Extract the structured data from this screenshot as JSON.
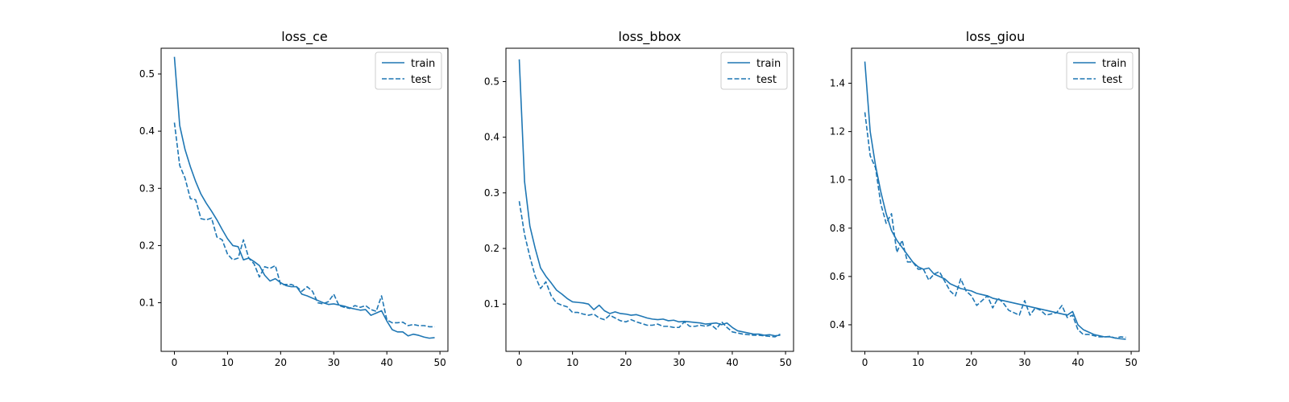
{
  "chart_data": [
    {
      "type": "line",
      "title": "loss_ce",
      "xlabel": "",
      "ylabel": "",
      "xlim": [
        -2.5,
        51.5
      ],
      "ylim": [
        0.015,
        0.545
      ],
      "xticks": [
        0,
        10,
        20,
        30,
        40,
        50
      ],
      "yticks": [
        0.1,
        0.2,
        0.3,
        0.4,
        0.5
      ],
      "ytick_labels": [
        "0.1",
        "0.2",
        "0.3",
        "0.4",
        "0.5"
      ],
      "legend_position": "upper right",
      "series": [
        {
          "name": "train",
          "style": "solid",
          "color": "#1f77b4",
          "values": [
            0.53,
            0.41,
            0.368,
            0.338,
            0.312,
            0.29,
            0.274,
            0.26,
            0.245,
            0.228,
            0.212,
            0.2,
            0.198,
            0.175,
            0.178,
            0.172,
            0.165,
            0.148,
            0.138,
            0.142,
            0.135,
            0.13,
            0.128,
            0.128,
            0.115,
            0.112,
            0.108,
            0.104,
            0.1,
            0.097,
            0.098,
            0.096,
            0.094,
            0.091,
            0.089,
            0.087,
            0.088,
            0.078,
            0.082,
            0.086,
            0.068,
            0.053,
            0.049,
            0.049,
            0.042,
            0.045,
            0.043,
            0.04,
            0.038,
            0.039
          ]
        },
        {
          "name": "test",
          "style": "dashed",
          "color": "#1f77b4",
          "values": [
            0.415,
            0.34,
            0.318,
            0.282,
            0.28,
            0.247,
            0.245,
            0.248,
            0.215,
            0.21,
            0.185,
            0.175,
            0.178,
            0.21,
            0.178,
            0.168,
            0.145,
            0.163,
            0.16,
            0.165,
            0.132,
            0.132,
            0.132,
            0.128,
            0.12,
            0.128,
            0.12,
            0.1,
            0.098,
            0.102,
            0.115,
            0.095,
            0.092,
            0.09,
            0.095,
            0.092,
            0.095,
            0.088,
            0.085,
            0.112,
            0.07,
            0.065,
            0.065,
            0.066,
            0.06,
            0.062,
            0.06,
            0.06,
            0.058,
            0.058
          ]
        }
      ]
    },
    {
      "type": "line",
      "title": "loss_bbox",
      "xlabel": "",
      "ylabel": "",
      "xlim": [
        -2.5,
        51.5
      ],
      "ylim": [
        0.015,
        0.56
      ],
      "xticks": [
        0,
        10,
        20,
        30,
        40,
        50
      ],
      "yticks": [
        0.1,
        0.2,
        0.3,
        0.4,
        0.5
      ],
      "ytick_labels": [
        "0.1",
        "0.2",
        "0.3",
        "0.4",
        "0.5"
      ],
      "legend_position": "upper right",
      "series": [
        {
          "name": "train",
          "style": "solid",
          "color": "#1f77b4",
          "values": [
            0.54,
            0.32,
            0.24,
            0.2,
            0.165,
            0.15,
            0.138,
            0.125,
            0.118,
            0.11,
            0.104,
            0.103,
            0.102,
            0.1,
            0.09,
            0.098,
            0.088,
            0.083,
            0.086,
            0.083,
            0.082,
            0.08,
            0.081,
            0.078,
            0.075,
            0.073,
            0.072,
            0.073,
            0.07,
            0.071,
            0.068,
            0.069,
            0.068,
            0.067,
            0.066,
            0.064,
            0.065,
            0.066,
            0.063,
            0.066,
            0.058,
            0.052,
            0.05,
            0.048,
            0.046,
            0.046,
            0.044,
            0.045,
            0.043,
            0.044
          ]
        },
        {
          "name": "test",
          "style": "dashed",
          "color": "#1f77b4",
          "values": [
            0.285,
            0.225,
            0.185,
            0.15,
            0.128,
            0.14,
            0.115,
            0.102,
            0.098,
            0.095,
            0.085,
            0.085,
            0.082,
            0.08,
            0.082,
            0.075,
            0.072,
            0.08,
            0.075,
            0.07,
            0.068,
            0.072,
            0.068,
            0.065,
            0.062,
            0.062,
            0.064,
            0.06,
            0.06,
            0.058,
            0.058,
            0.068,
            0.06,
            0.06,
            0.062,
            0.06,
            0.063,
            0.055,
            0.068,
            0.058,
            0.05,
            0.048,
            0.046,
            0.045,
            0.044,
            0.044,
            0.043,
            0.042,
            0.041,
            0.046
          ]
        }
      ]
    },
    {
      "type": "line",
      "title": "loss_giou",
      "xlabel": "",
      "ylabel": "",
      "xlim": [
        -2.5,
        51.5
      ],
      "ylim": [
        0.29,
        1.545
      ],
      "xticks": [
        0,
        10,
        20,
        30,
        40,
        50
      ],
      "yticks": [
        0.4,
        0.6,
        0.8,
        1.0,
        1.2,
        1.4
      ],
      "ytick_labels": [
        "0.4",
        "0.6",
        "0.8",
        "1.0",
        "1.2",
        "1.4"
      ],
      "legend_position": "upper right",
      "series": [
        {
          "name": "train",
          "style": "solid",
          "color": "#1f77b4",
          "values": [
            1.49,
            1.2,
            1.06,
            0.95,
            0.86,
            0.79,
            0.75,
            0.72,
            0.69,
            0.66,
            0.64,
            0.63,
            0.635,
            0.61,
            0.6,
            0.59,
            0.57,
            0.56,
            0.55,
            0.545,
            0.54,
            0.53,
            0.525,
            0.52,
            0.51,
            0.505,
            0.5,
            0.495,
            0.49,
            0.485,
            0.48,
            0.475,
            0.47,
            0.465,
            0.46,
            0.455,
            0.45,
            0.445,
            0.44,
            0.455,
            0.4,
            0.38,
            0.37,
            0.36,
            0.355,
            0.35,
            0.35,
            0.345,
            0.342,
            0.34
          ]
        },
        {
          "name": "test",
          "style": "dashed",
          "color": "#1f77b4",
          "values": [
            1.28,
            1.1,
            1.05,
            0.9,
            0.82,
            0.86,
            0.7,
            0.75,
            0.66,
            0.66,
            0.63,
            0.63,
            0.585,
            0.61,
            0.62,
            0.58,
            0.54,
            0.52,
            0.59,
            0.54,
            0.52,
            0.48,
            0.5,
            0.52,
            0.47,
            0.51,
            0.49,
            0.46,
            0.45,
            0.44,
            0.5,
            0.44,
            0.47,
            0.46,
            0.44,
            0.445,
            0.45,
            0.48,
            0.43,
            0.44,
            0.38,
            0.36,
            0.36,
            0.355,
            0.35,
            0.35,
            0.352,
            0.345,
            0.35,
            0.348
          ]
        }
      ]
    }
  ]
}
